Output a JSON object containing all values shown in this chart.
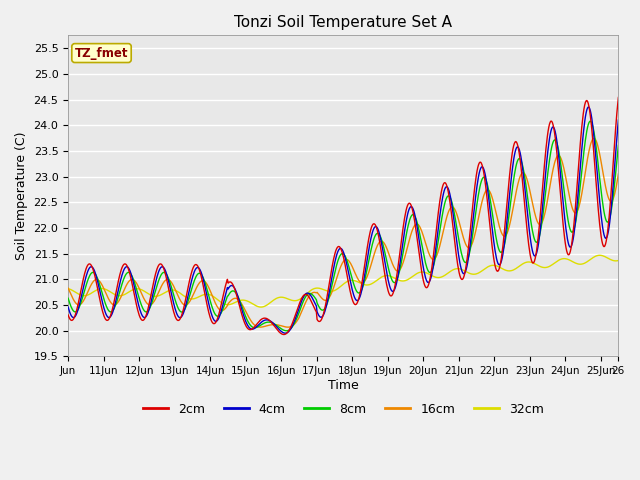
{
  "title": "Tonzi Soil Temperature Set A",
  "xlabel": "Time",
  "ylabel": "Soil Temperature (C)",
  "ylim": [
    19.5,
    25.75
  ],
  "xlim": [
    0,
    15.5
  ],
  "xtick_labels": [
    "Jun",
    "11Jun",
    "12Jun",
    "13Jun",
    "14Jun",
    "15Jun",
    "16Jun",
    "17Jun",
    "18Jun",
    "19Jun",
    "20Jun",
    "21Jun",
    "22Jun",
    "23Jun",
    "24Jun",
    "25Jun",
    "26"
  ],
  "xtick_positions": [
    0,
    1,
    2,
    3,
    4,
    5,
    6,
    7,
    8,
    9,
    10,
    11,
    12,
    13,
    14,
    15,
    15.5
  ],
  "line_colors": {
    "2cm": "#dd0000",
    "4cm": "#0000cc",
    "8cm": "#00cc00",
    "16cm": "#ee8800",
    "32cm": "#dddd00"
  },
  "legend_label": "TZ_fmet",
  "legend_bg": "#ffffcc",
  "legend_border": "#bbaa00",
  "fig_bg": "#f0f0f0",
  "axes_bg": "#e8e8e8",
  "grid_color": "#ffffff"
}
